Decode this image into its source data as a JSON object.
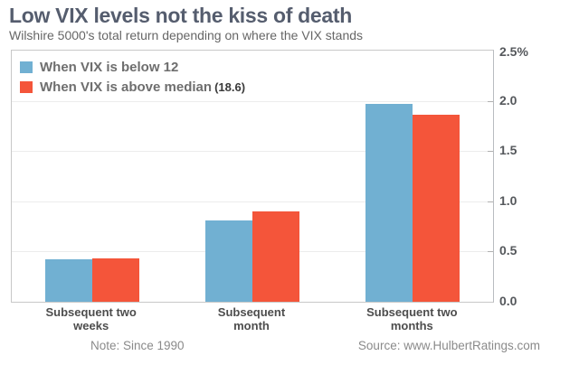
{
  "header": {
    "title": "Low VIX levels not the kiss of death",
    "subtitle": "Wilshire 5000's total return depending on where the VIX stands"
  },
  "legend": {
    "items": [
      {
        "label": "When VIX is below 12",
        "suffix": "",
        "swatch_color": "#71B0D2"
      },
      {
        "label": "When VIX is above median",
        "suffix": "(18.6)",
        "swatch_color": "#F4553A"
      }
    ]
  },
  "footer": {
    "note": "Note: Since 1990",
    "source": "Source: www.HulbertRatings.com"
  },
  "colors": {
    "blue": "#71B0D2",
    "red": "#F4553A",
    "title": "#555D6E",
    "gridline": "#ECECEC"
  },
  "chart_data": {
    "type": "bar",
    "title": "Low VIX levels not the kiss of death",
    "subtitle": "Wilshire 5000's total return depending on where the VIX stands",
    "categories": [
      "Subsequent two\nweeks",
      "Subsequent\nmonth",
      "Subsequent two\nmonths"
    ],
    "series": [
      {
        "name": "When VIX is below 12",
        "color": "#71B0D2",
        "values": [
          0.42,
          0.81,
          1.97
        ]
      },
      {
        "name": "When VIX is above median (18.6)",
        "color": "#F4553A",
        "values": [
          0.43,
          0.9,
          1.86
        ]
      }
    ],
    "ylabel": "",
    "xlabel": "",
    "ylim": [
      0,
      2.5
    ],
    "ytick_step": 0.5,
    "yticks": [
      "2.5%",
      "2.0",
      "1.5",
      "1.0",
      "0.5",
      "0.0"
    ],
    "grid": true,
    "legend_position": "top-left-inside",
    "axis_side": "right",
    "note": "Note: Since 1990",
    "source": "Source: www.HulbertRatings.com"
  }
}
